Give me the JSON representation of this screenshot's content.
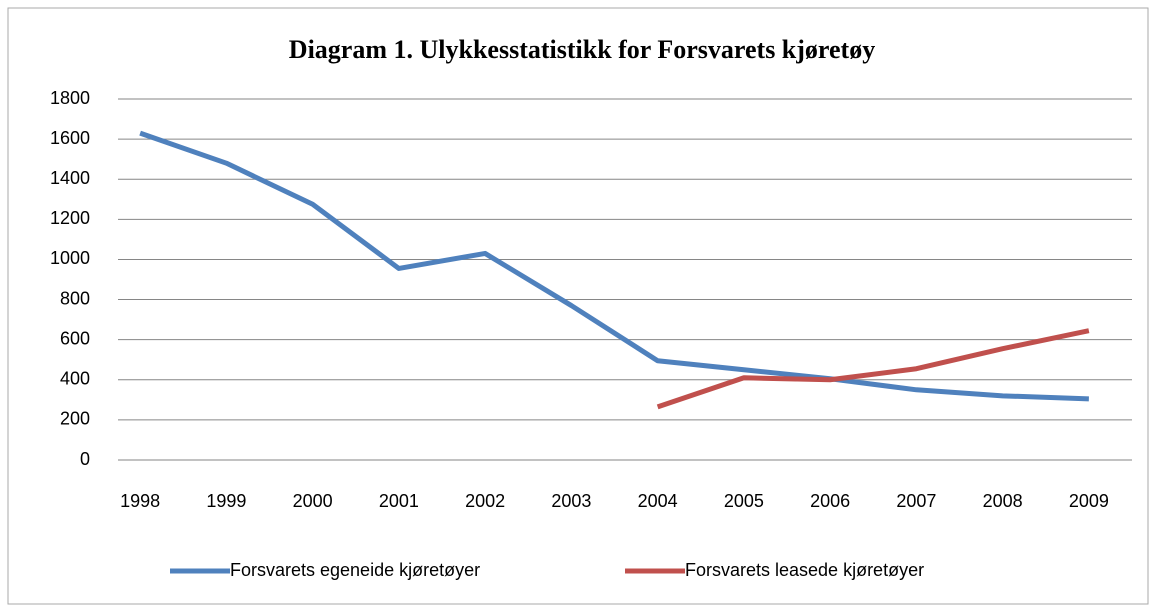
{
  "chart_data": {
    "type": "line",
    "title": "Diagram 1. Ulykkesstatistikk for Forsvarets kjøretøy",
    "categories": [
      "1998",
      "1999",
      "2000",
      "2001",
      "2002",
      "2003",
      "2004",
      "2005",
      "2006",
      "2007",
      "2008",
      "2009"
    ],
    "series": [
      {
        "name": "Forsvarets egeneide kjøretøyer",
        "color": "#4f81bd",
        "values": [
          1630,
          1480,
          1275,
          955,
          1030,
          770,
          495,
          450,
          405,
          350,
          320,
          305
        ]
      },
      {
        "name": "Forsvarets leasede kjøretøyer",
        "color": "#c0504d",
        "values": [
          null,
          null,
          null,
          null,
          null,
          null,
          265,
          410,
          400,
          455,
          555,
          645
        ]
      }
    ],
    "ylim": [
      0,
      1800
    ],
    "yticks": [
      0,
      200,
      400,
      600,
      800,
      1000,
      1200,
      1400,
      1600,
      1800
    ],
    "grid": true,
    "legend": "bottom"
  }
}
